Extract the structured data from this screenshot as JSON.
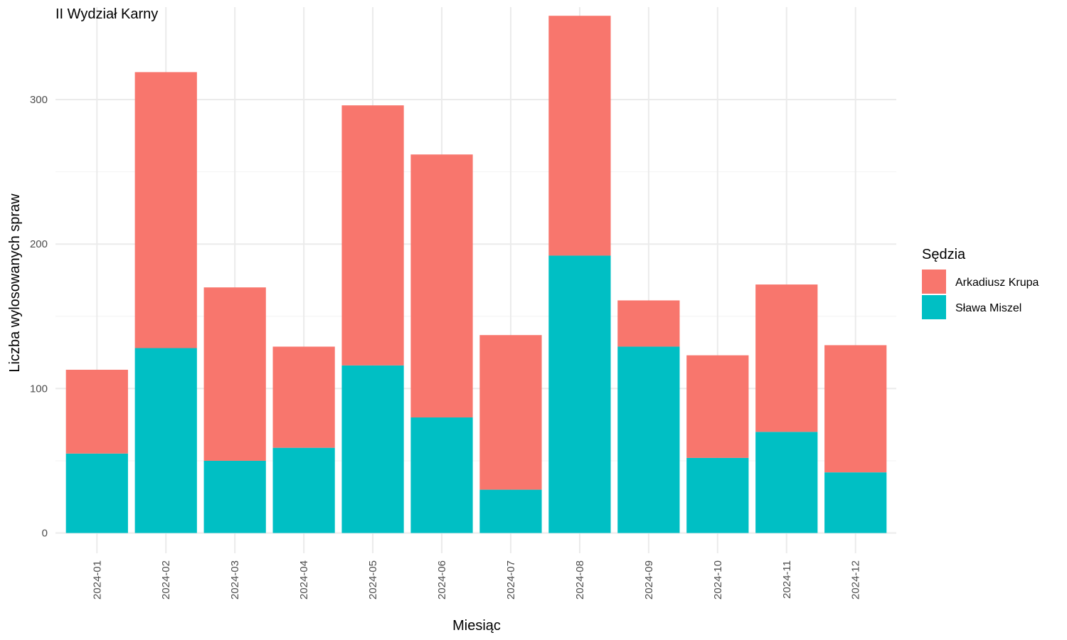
{
  "chart_data": {
    "type": "bar",
    "stacked": true,
    "title": "II Wydział Karny",
    "xlabel": "Miesiąc",
    "ylabel": "Liczba wylosowanych spraw",
    "categories": [
      "2024-01",
      "2024-02",
      "2024-03",
      "2024-04",
      "2024-05",
      "2024-06",
      "2024-07",
      "2024-08",
      "2024-09",
      "2024-10",
      "2024-11",
      "2024-12"
    ],
    "ylim": [
      -14,
      364
    ],
    "yticks": [
      0,
      100,
      200,
      300
    ],
    "grid": true,
    "legend": {
      "title": "Sędzia",
      "position": "right"
    },
    "series": [
      {
        "name": "Sława Miszel",
        "color": "#00BFC4",
        "values": [
          55,
          128,
          50,
          59,
          116,
          80,
          30,
          192,
          129,
          52,
          70,
          42
        ]
      },
      {
        "name": "Arkadiusz Krupa",
        "color": "#F8766D",
        "values": [
          58,
          191,
          120,
          70,
          180,
          182,
          107,
          166,
          32,
          71,
          102,
          88
        ]
      }
    ],
    "legend_order": [
      "Arkadiusz Krupa",
      "Sława Miszel"
    ]
  }
}
